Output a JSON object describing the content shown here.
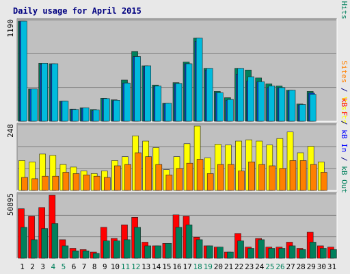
{
  "chart_data": {
    "type": "bar",
    "title": "Daily usage for April 2015",
    "categories": [
      "1",
      "2",
      "3",
      "4",
      "5",
      "6",
      "7",
      "8",
      "9",
      "10",
      "11",
      "12",
      "13",
      "14",
      "15",
      "16",
      "17",
      "18",
      "19",
      "20",
      "21",
      "22",
      "23",
      "24",
      "25",
      "26",
      "27",
      "28",
      "29",
      "30",
      "31"
    ],
    "weekend_days": [
      "4",
      "5",
      "11",
      "12",
      "18",
      "19",
      "25",
      "26"
    ],
    "panels": [
      {
        "id": "requests",
        "max_label": "1190",
        "ylim": [
          0,
          1190
        ],
        "right_label": [
          {
            "text": "Pages",
            "color": "#00bbdd"
          },
          {
            "text": " / ",
            "color": "#000080"
          },
          {
            "text": "Files",
            "color": "#0044cc"
          },
          {
            "text": " / ",
            "color": "#000080"
          },
          {
            "text": "Hits",
            "color": "#00805c"
          }
        ],
        "series": [
          {
            "name": "Hits",
            "color": "#00805c",
            "values": [
              1190,
              385,
              690,
              685,
              240,
              145,
              160,
              140,
              275,
              255,
              490,
              830,
              660,
              430,
              215,
              460,
              705,
              990,
              630,
              355,
              280,
              630,
              610,
              515,
              445,
              420,
              370,
              205,
              355,
              0,
              0
            ]
          },
          {
            "name": "Files",
            "color": "#0044cc",
            "values": [
              1190,
              385,
              675,
              680,
              240,
              140,
              155,
              125,
              265,
              245,
              455,
              770,
              650,
              415,
              210,
              445,
              685,
              950,
              610,
              340,
              250,
              560,
              480,
              470,
              400,
              400,
              360,
              195,
              335,
              0,
              0
            ]
          },
          {
            "name": "Pages",
            "color": "#00bbdd",
            "values": [
              1190,
              385,
              690,
              685,
              240,
              140,
              160,
              135,
              270,
              250,
              455,
              770,
              660,
              420,
              215,
              450,
              685,
              990,
              630,
              340,
              260,
              630,
              530,
              470,
              420,
              400,
              370,
              200,
              320,
              0,
              0
            ]
          }
        ]
      },
      {
        "id": "visits",
        "max_label": "248",
        "ylim": [
          0,
          248
        ],
        "right_label": [
          {
            "text": "Sites",
            "color": "#ff8000"
          },
          {
            "text": " / ",
            "color": "#000080"
          },
          {
            "text": "Visits",
            "color": "#ffff00"
          }
        ],
        "series": [
          {
            "name": "Visits",
            "color": "#ffff00",
            "values": [
              115,
              110,
              140,
              135,
              100,
              90,
              75,
              65,
              75,
              115,
              130,
              210,
              190,
              165,
              80,
              130,
              180,
              248,
              125,
              178,
              175,
              190,
              195,
              190,
              175,
              200,
              225,
              145,
              170,
              110,
              0
            ]
          },
          {
            "name": "Sites",
            "color": "#ff8000",
            "values": [
              50,
              45,
              55,
              55,
              70,
              65,
              60,
              55,
              50,
              95,
              100,
              145,
              130,
              100,
              60,
              85,
              105,
              120,
              65,
              100,
              100,
              75,
              110,
              100,
              95,
              85,
              115,
              115,
              100,
              70,
              0
            ]
          }
        ]
      },
      {
        "id": "volume",
        "max_label": "50895",
        "ylim": [
          0,
          50895
        ],
        "right_label": [
          {
            "text": "kB F",
            "color": "#ff0000"
          },
          {
            "text": " / ",
            "color": "#000080"
          },
          {
            "text": "kB In",
            "color": "#0000ff"
          },
          {
            "text": " / ",
            "color": "#000080"
          },
          {
            "text": "kB Out",
            "color": "#00805c"
          }
        ],
        "series": [
          {
            "name": "kB F",
            "color": "#ff0000",
            "values": [
              40000,
              34000,
              41000,
              50895,
              15000,
              8000,
              7000,
              5000,
              25000,
              16000,
              27000,
              33000,
              13000,
              10000,
              12000,
              35000,
              34000,
              17000,
              10000,
              9000,
              5000,
              20000,
              9000,
              16000,
              9000,
              9000,
              13000,
              8000,
              21000,
              10000,
              9000
            ]
          },
          {
            "name": "kB In",
            "color": "#0000ff",
            "values": [
              0,
              0,
              0,
              0,
              0,
              0,
              0,
              0,
              0,
              0,
              0,
              0,
              0,
              0,
              0,
              0,
              0,
              0,
              0,
              0,
              0,
              0,
              0,
              0,
              0,
              0,
              0,
              0,
              0,
              0,
              0
            ]
          },
          {
            "name": "kB Out",
            "color": "#00805c",
            "values": [
              25000,
              15000,
              24000,
              28000,
              10000,
              6000,
              6000,
              4000,
              14000,
              14000,
              15000,
              25000,
              10000,
              10000,
              12000,
              25000,
              27000,
              15000,
              10000,
              9000,
              5000,
              14000,
              8000,
              15000,
              8000,
              8000,
              10000,
              7000,
              13000,
              8000,
              7000
            ]
          }
        ]
      }
    ]
  }
}
